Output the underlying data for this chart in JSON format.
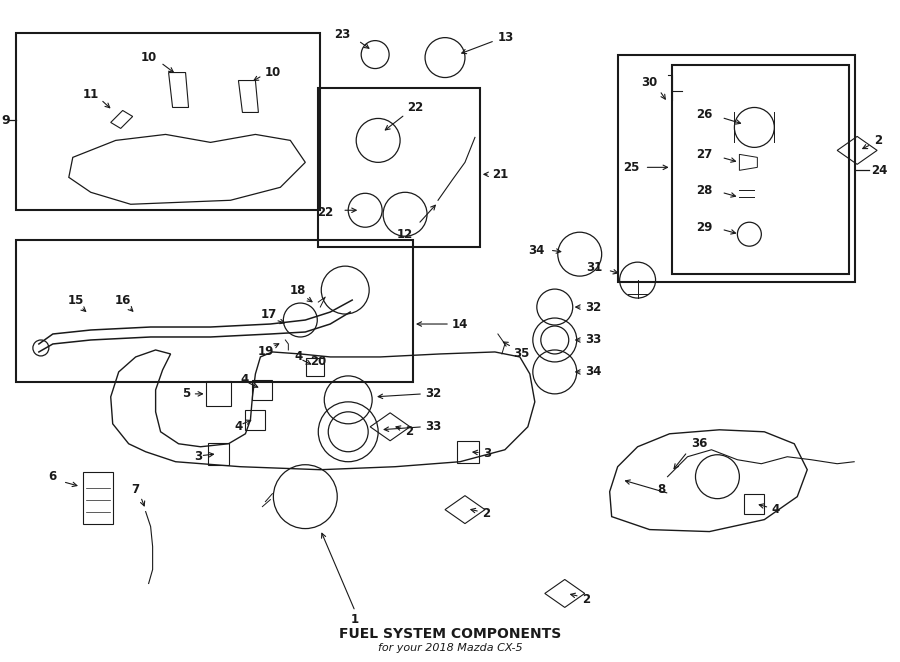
{
  "bg_color": "#ffffff",
  "line_color": "#1a1a1a",
  "fig_width": 9.0,
  "fig_height": 6.62,
  "title": "FUEL SYSTEM COMPONENTS",
  "subtitle": "for your 2018 Mazda CX-5"
}
